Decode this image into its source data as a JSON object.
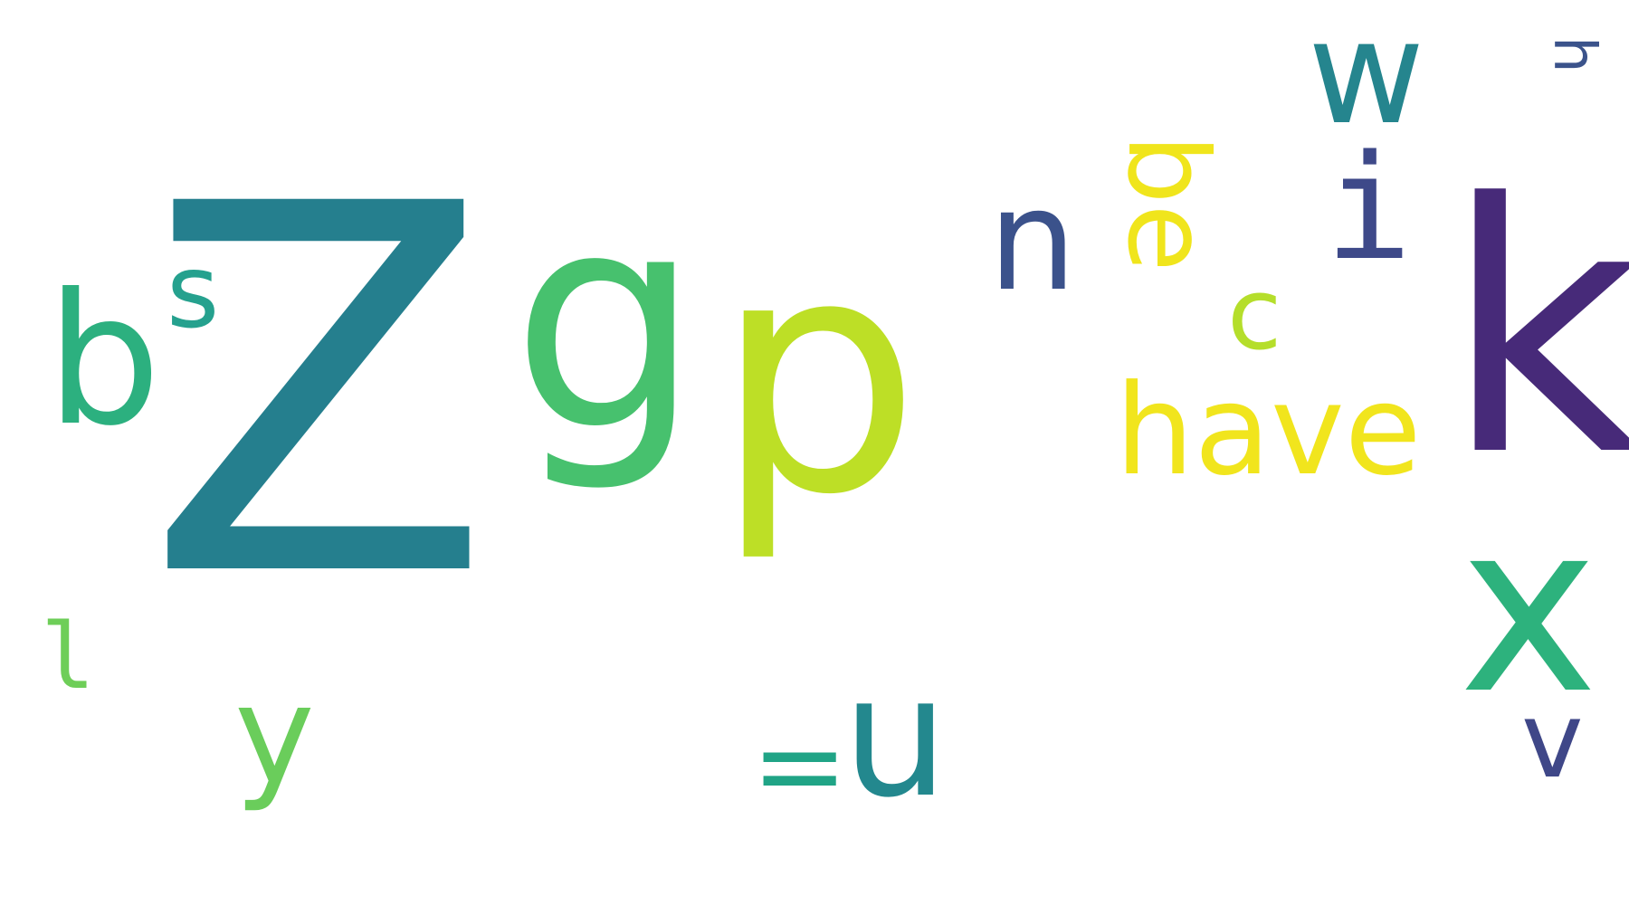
{
  "words": [
    {
      "key": "Z",
      "text": "Z",
      "color": "#257f8e"
    },
    {
      "key": "g",
      "text": "g",
      "color": "#47c16e"
    },
    {
      "key": "p",
      "text": "p",
      "color": "#bddf26"
    },
    {
      "key": "k",
      "text": "k",
      "color": "#472a79"
    },
    {
      "key": "x",
      "text": "x",
      "color": "#2db27d"
    },
    {
      "key": "b",
      "text": "b",
      "color": "#2cb07f"
    },
    {
      "key": "s",
      "text": "s",
      "color": "#25a18e"
    },
    {
      "key": "u",
      "text": "u",
      "color": "#23888e"
    },
    {
      "key": "n",
      "text": "n",
      "color": "#3b528b"
    },
    {
      "key": "be",
      "text": "be",
      "color": "#f0e51c"
    },
    {
      "key": "w",
      "text": "w",
      "color": "#25858e"
    },
    {
      "key": "h",
      "text": "h",
      "color": "#3b538b"
    },
    {
      "key": "i",
      "text": "i",
      "color": "#3e4989"
    },
    {
      "key": "c",
      "text": "c",
      "color": "#b5de2b"
    },
    {
      "key": "have",
      "text": "have",
      "color": "#f1e51d"
    },
    {
      "key": "l",
      "text": "l",
      "color": "#6ece58"
    },
    {
      "key": "y",
      "text": "y",
      "color": "#6acd5b"
    },
    {
      "key": "eq",
      "text": "=",
      "color": "#20a486"
    },
    {
      "key": "v",
      "text": "v",
      "color": "#3f4788"
    }
  ]
}
